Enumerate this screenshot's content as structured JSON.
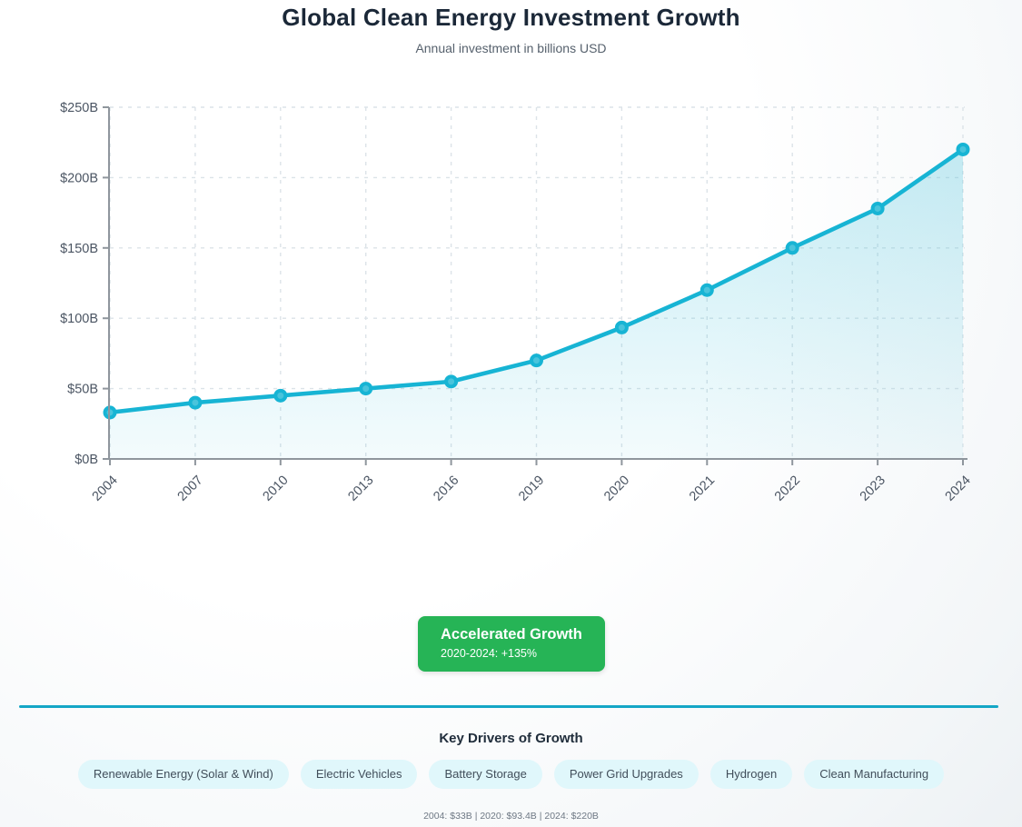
{
  "page": {
    "title": "Global Clean Energy Investment Growth",
    "subtitle": "Annual investment in billions USD"
  },
  "chart_data": {
    "type": "line",
    "title": "Global Clean Energy Investment Growth",
    "subtitle": "Annual investment in billions USD",
    "categories": [
      "2004",
      "2007",
      "2010",
      "2013",
      "2016",
      "2019",
      "2020",
      "2021",
      "2022",
      "2023",
      "2024"
    ],
    "series": [
      {
        "name": "Annual clean energy investment (billions USD)",
        "values": [
          33,
          40,
          45,
          50,
          55,
          70,
          93.4,
          120,
          150,
          178,
          220
        ]
      }
    ],
    "xlabel": "",
    "ylabel": "",
    "ylim": [
      0,
      250
    ],
    "y_tick_values": [
      0,
      50,
      100,
      150,
      200,
      250
    ],
    "y_tick_labels": [
      "$0B",
      "$50B",
      "$100B",
      "$150B",
      "$200B",
      "$250B"
    ],
    "grid": true,
    "legend": "none",
    "line_color": "#17b4d4",
    "marker_fill": "#49c4dc",
    "area_fill_color": "#17b4d4",
    "axis_color": "#8f969d",
    "grid_color": "#dce3e8",
    "tick_label_color": "#4b5563"
  },
  "badge": {
    "title": "Accelerated Growth",
    "subtitle": "2020-2024: +135%",
    "color": "#26b456"
  },
  "drivers": {
    "heading": "Key Drivers of Growth",
    "items": [
      "Renewable Energy (Solar & Wind)",
      "Electric Vehicles",
      "Battery Storage",
      "Power Grid Upgrades",
      "Hydrogen",
      "Clean Manufacturing"
    ]
  },
  "footer": {
    "summary": "2004: $33B | 2020: $93.4B | 2024: $220B"
  }
}
